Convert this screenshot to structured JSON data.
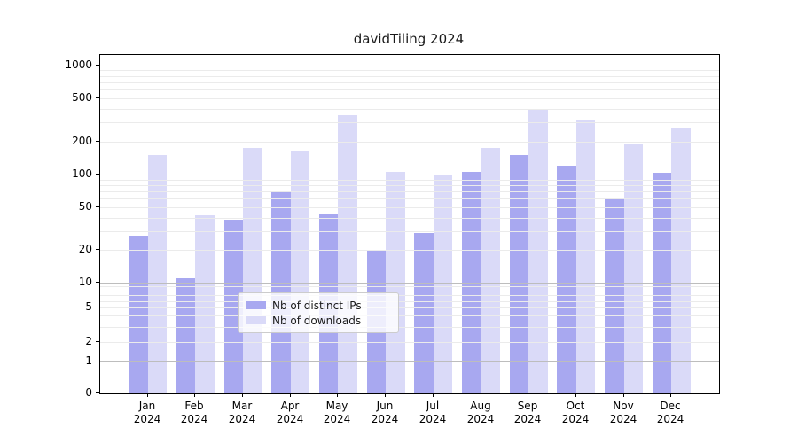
{
  "title": "davidTiling 2024",
  "chart_data": {
    "type": "bar",
    "title": "davidTiling 2024",
    "categories": [
      "Jan",
      "Feb",
      "Mar",
      "Apr",
      "May",
      "Jun",
      "Jul",
      "Aug",
      "Sep",
      "Oct",
      "Nov",
      "Dec"
    ],
    "category_year": "2024",
    "series": [
      {
        "name": "Nb of distinct IPs",
        "color": "#a8a8f0",
        "values": [
          27,
          11,
          38,
          68,
          44,
          20,
          29,
          105,
          150,
          120,
          60,
          103
        ]
      },
      {
        "name": "Nb of downloads",
        "color": "#dadaf8",
        "values": [
          150,
          42,
          175,
          165,
          350,
          105,
          100,
          175,
          400,
          310,
          190,
          270
        ]
      }
    ],
    "yticks": [
      1000,
      500,
      200,
      100,
      50,
      20,
      10,
      5,
      2,
      1,
      0
    ],
    "y_major_gridlines": [
      1,
      10,
      100,
      1000
    ],
    "y_minor_gridlines": [
      2,
      3,
      4,
      5,
      6,
      7,
      8,
      9,
      20,
      30,
      40,
      50,
      60,
      70,
      80,
      90,
      200,
      300,
      400,
      500,
      600,
      700,
      800,
      900
    ],
    "ylim": [
      0,
      1000
    ],
    "yscale": "symlog",
    "grid": true,
    "legend_position": "lower center",
    "legend_labels": [
      "Nb of distinct IPs",
      "Nb of downloads"
    ]
  },
  "colors": {
    "distinct_ips_bar": "#a8a8f0",
    "downloads_bar": "#dadaf8",
    "major_gridline": "#bdbdbd",
    "minor_gridline": "#ebebeb",
    "axis": "#000000",
    "background": "#ffffff"
  }
}
